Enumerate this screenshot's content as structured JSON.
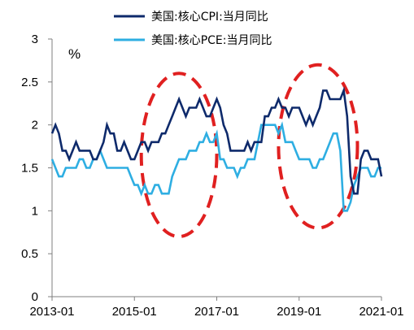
{
  "chart_data": {
    "type": "line",
    "unit_label": "%",
    "ylim": [
      0,
      3
    ],
    "yticks": [
      0,
      0.5,
      1,
      1.5,
      2,
      2.5,
      3
    ],
    "ytick_labels": [
      "0",
      "0.5",
      "1",
      "1.5",
      "2",
      "2.5",
      "3"
    ],
    "xlim": [
      "2013-01",
      "2021-01"
    ],
    "xtick_labels": [
      "2013-01",
      "2015-01",
      "2017-01",
      "2019-01",
      "2021-01"
    ],
    "grid": false,
    "legend_position": "top-center",
    "series": [
      {
        "name": "美国:核心CPI:当月同比",
        "color": "#0e2a6b",
        "values": [
          1.9,
          2.0,
          1.9,
          1.7,
          1.7,
          1.6,
          1.7,
          1.8,
          1.7,
          1.7,
          1.7,
          1.7,
          1.6,
          1.6,
          1.7,
          1.8,
          2.0,
          1.9,
          1.9,
          1.7,
          1.7,
          1.8,
          1.7,
          1.6,
          1.6,
          1.7,
          1.8,
          1.8,
          1.7,
          1.8,
          1.8,
          1.8,
          1.9,
          1.9,
          2.0,
          2.1,
          2.2,
          2.3,
          2.2,
          2.1,
          2.2,
          2.2,
          2.2,
          2.3,
          2.2,
          2.1,
          2.1,
          2.2,
          2.3,
          2.2,
          2.0,
          1.9,
          1.7,
          1.7,
          1.7,
          1.7,
          1.7,
          1.8,
          1.7,
          1.8,
          1.8,
          1.8,
          2.1,
          2.1,
          2.2,
          2.2,
          2.3,
          2.2,
          2.2,
          2.1,
          2.2,
          2.2,
          2.2,
          2.1,
          2.0,
          2.1,
          2.0,
          2.1,
          2.2,
          2.4,
          2.4,
          2.3,
          2.3,
          2.3,
          2.3,
          2.4,
          2.1,
          1.4,
          1.2,
          1.2,
          1.6,
          1.7,
          1.7,
          1.6,
          1.6,
          1.6,
          1.4
        ]
      },
      {
        "name": "美国:核心PCE:当月同比",
        "color": "#2eaee2",
        "values": [
          1.6,
          1.5,
          1.4,
          1.4,
          1.5,
          1.5,
          1.5,
          1.5,
          1.6,
          1.6,
          1.5,
          1.5,
          1.6,
          1.6,
          1.7,
          1.6,
          1.5,
          1.5,
          1.5,
          1.5,
          1.5,
          1.5,
          1.5,
          1.4,
          1.3,
          1.3,
          1.2,
          1.3,
          1.2,
          1.2,
          1.3,
          1.3,
          1.2,
          1.2,
          1.2,
          1.4,
          1.5,
          1.6,
          1.6,
          1.6,
          1.7,
          1.7,
          1.7,
          1.8,
          1.8,
          1.9,
          1.8,
          1.8,
          1.9,
          1.6,
          1.6,
          1.5,
          1.5,
          1.5,
          1.4,
          1.5,
          1.5,
          1.6,
          1.6,
          1.6,
          1.8,
          2.0,
          2.0,
          2.0,
          2.0,
          2.0,
          1.9,
          2.0,
          1.8,
          1.8,
          1.8,
          1.7,
          1.6,
          1.6,
          1.6,
          1.6,
          1.5,
          1.5,
          1.6,
          1.6,
          1.7,
          1.8,
          1.9,
          1.9,
          1.7,
          1.0,
          1.0,
          1.1,
          1.3,
          1.4,
          1.5,
          1.5,
          1.5,
          1.4,
          1.4,
          1.5,
          1.5
        ]
      }
    ],
    "annotations": [
      {
        "type": "dashed-ellipse",
        "color": "#e02020",
        "x_range": [
          "2015-03",
          "2017-01"
        ],
        "y_range": [
          0.7,
          2.6
        ]
      },
      {
        "type": "dashed-ellipse",
        "color": "#e02020",
        "x_range": [
          "2018-07",
          "2020-06"
        ],
        "y_range": [
          0.8,
          2.7
        ]
      }
    ]
  }
}
